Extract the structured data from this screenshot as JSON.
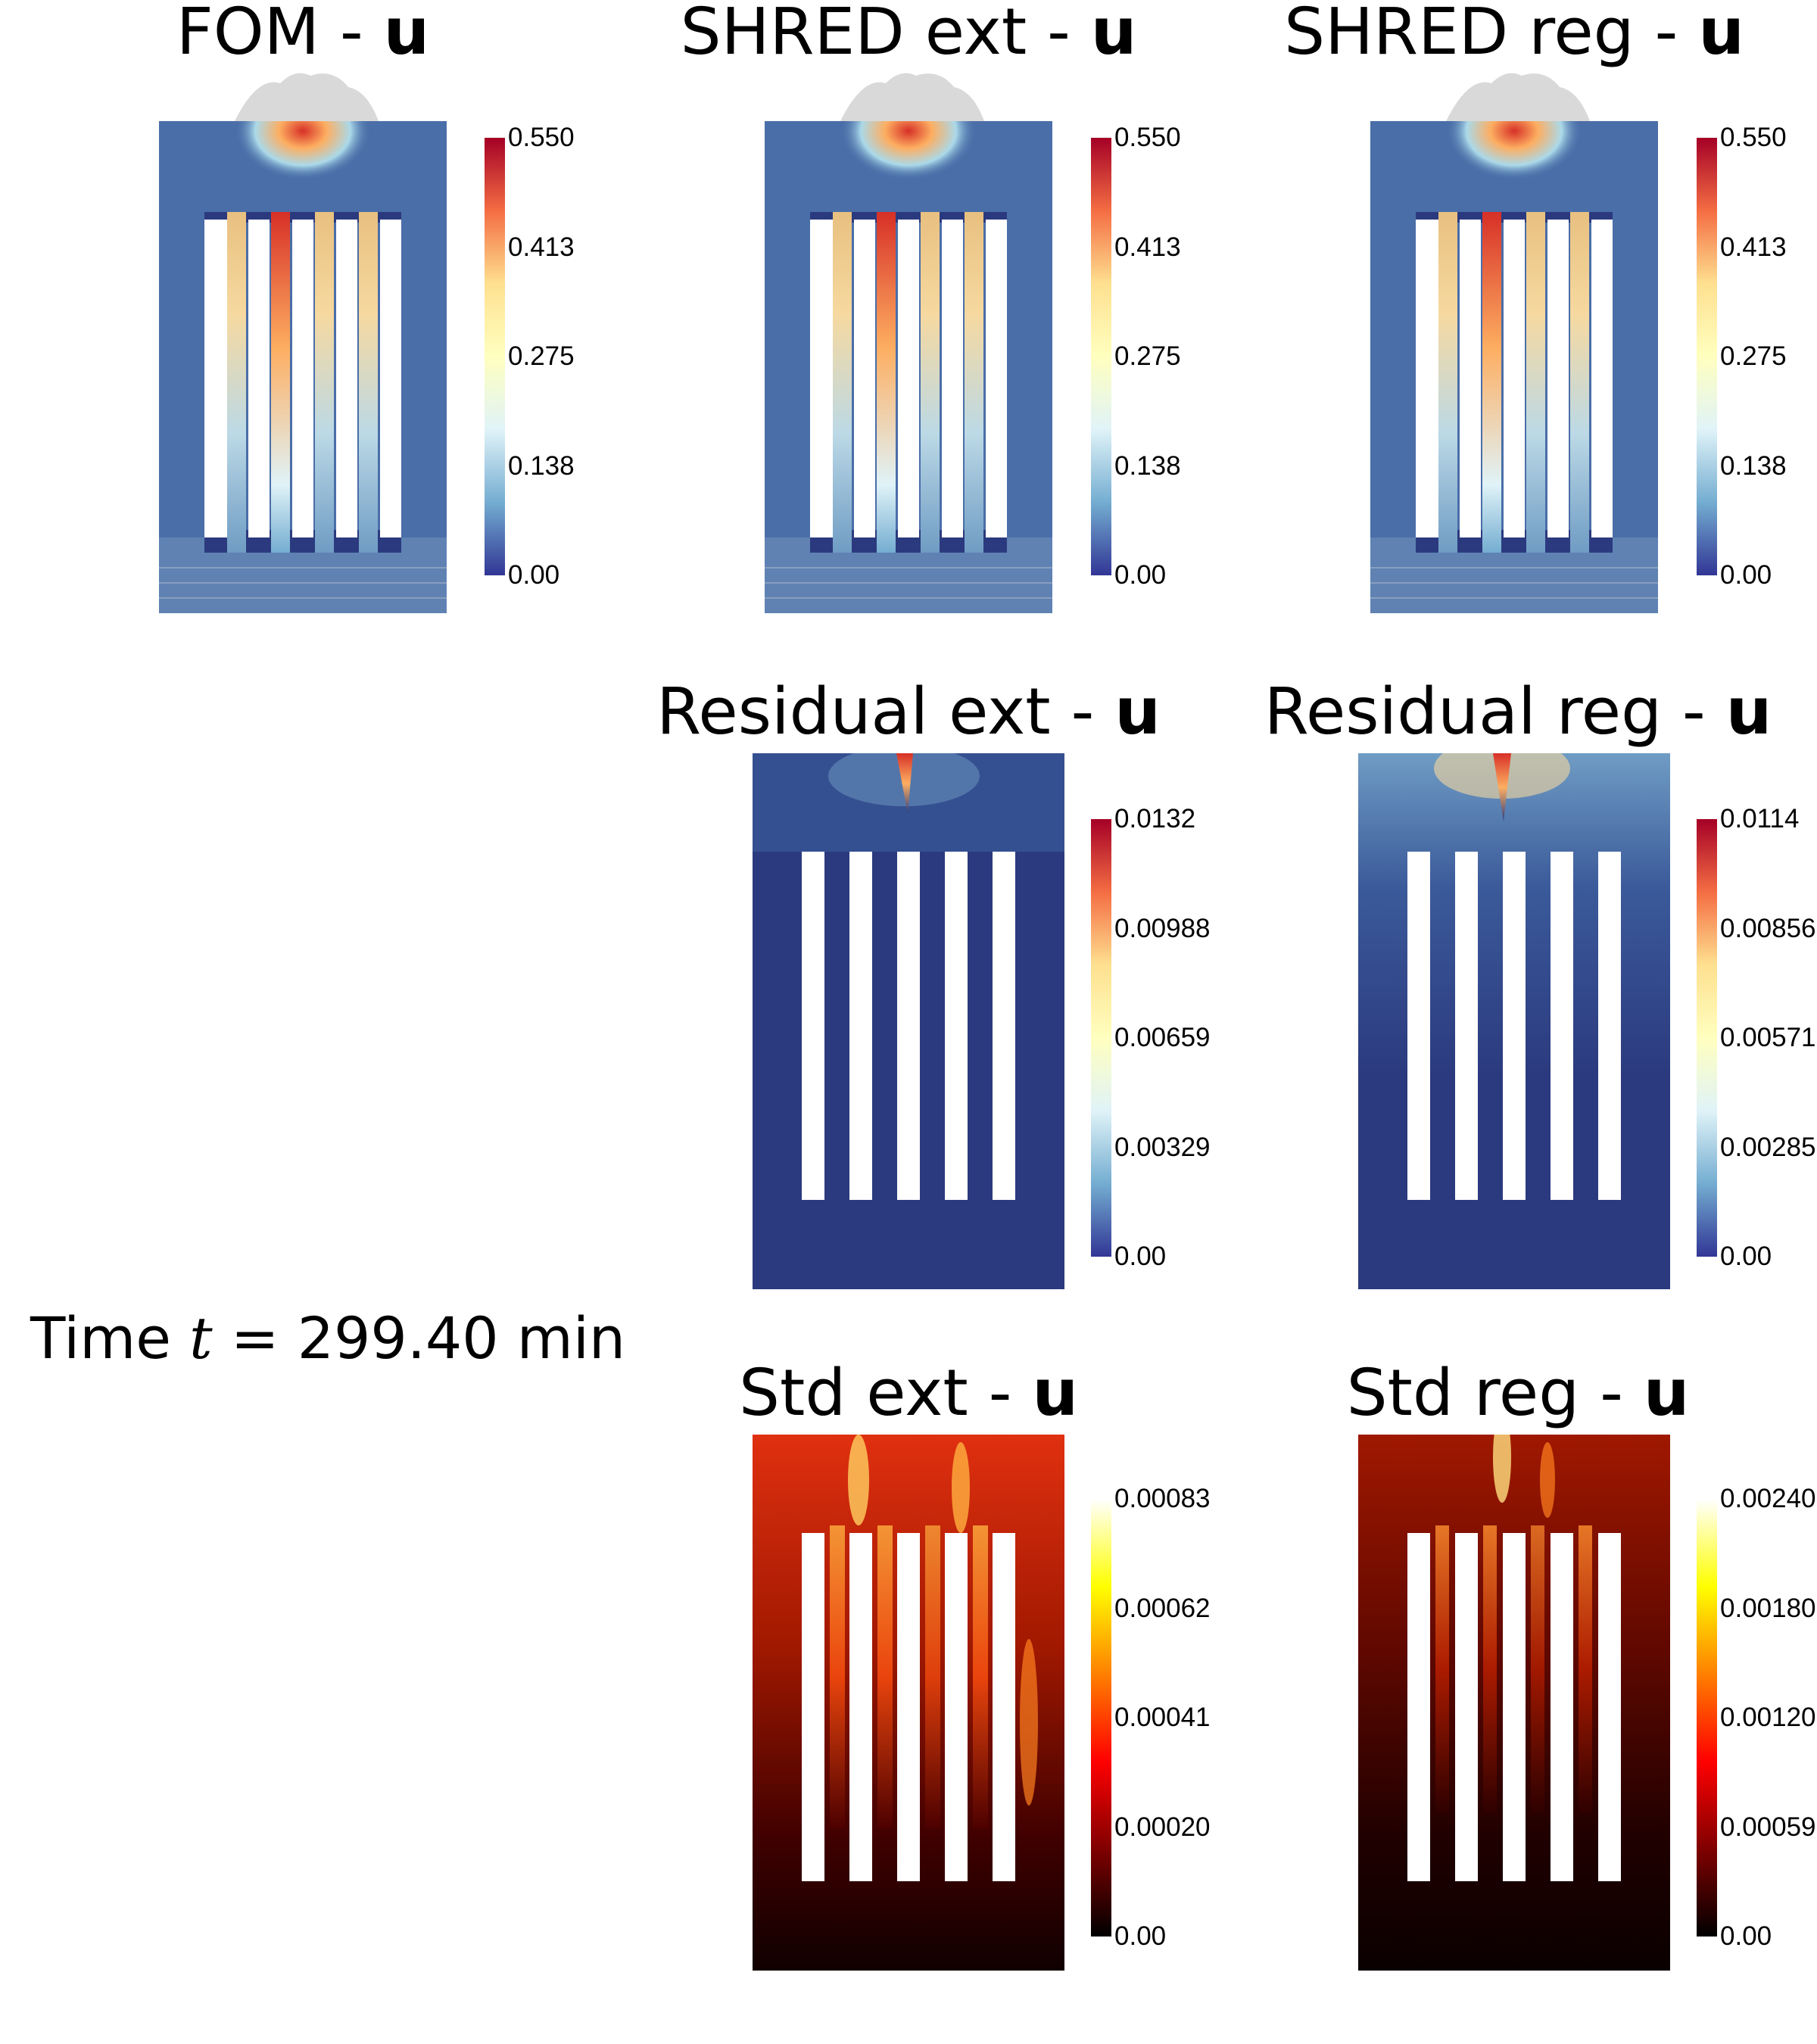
{
  "time_label": {
    "prefix": "Time ",
    "var": "t",
    "equals": " = ",
    "value": "299.40 min"
  },
  "panels": [
    {
      "id": "fom",
      "title": "FOM - ",
      "bold": "u",
      "cmap": "rdylbu",
      "ticks": [
        "0.550",
        "0.413",
        "0.275",
        "0.138",
        "0.00"
      ]
    },
    {
      "id": "shred-ext",
      "title": "SHRED ext - ",
      "bold": "u",
      "cmap": "rdylbu",
      "ticks": [
        "0.550",
        "0.413",
        "0.275",
        "0.138",
        "0.00"
      ]
    },
    {
      "id": "shred-reg",
      "title": "SHRED reg - ",
      "bold": "u",
      "cmap": "rdylbu",
      "ticks": [
        "0.550",
        "0.413",
        "0.275",
        "0.138",
        "0.00"
      ]
    },
    {
      "id": "residual-ext",
      "title": "Residual ext - ",
      "bold": "u",
      "cmap": "rdylbu",
      "ticks": [
        "0.0132",
        "0.00988",
        "0.00659",
        "0.00329",
        "0.00"
      ]
    },
    {
      "id": "residual-reg",
      "title": "Residual reg - ",
      "bold": "u",
      "cmap": "rdylbu",
      "ticks": [
        "0.0114",
        "0.00856",
        "0.00571",
        "0.00285",
        "0.00"
      ]
    },
    {
      "id": "std-ext",
      "title": "Std ext - ",
      "bold": "u",
      "cmap": "hot",
      "ticks": [
        "0.00083",
        "0.00062",
        "0.00041",
        "0.00020",
        "0.00"
      ]
    },
    {
      "id": "std-reg",
      "title": "Std reg - ",
      "bold": "u",
      "cmap": "hot",
      "ticks": [
        "0.00240",
        "0.00180",
        "0.00120",
        "0.00059",
        "0.00"
      ]
    }
  ],
  "colors": {
    "rdylbu": [
      "#a50026",
      "#f46d43",
      "#fee090",
      "#ffffbf",
      "#e0f3f8",
      "#74add1",
      "#313695"
    ],
    "hot": [
      "#ffffff",
      "#ffff00",
      "#ff8000",
      "#ff0000",
      "#800000",
      "#000000"
    ],
    "domain_blue": "#2b3a7e"
  }
}
